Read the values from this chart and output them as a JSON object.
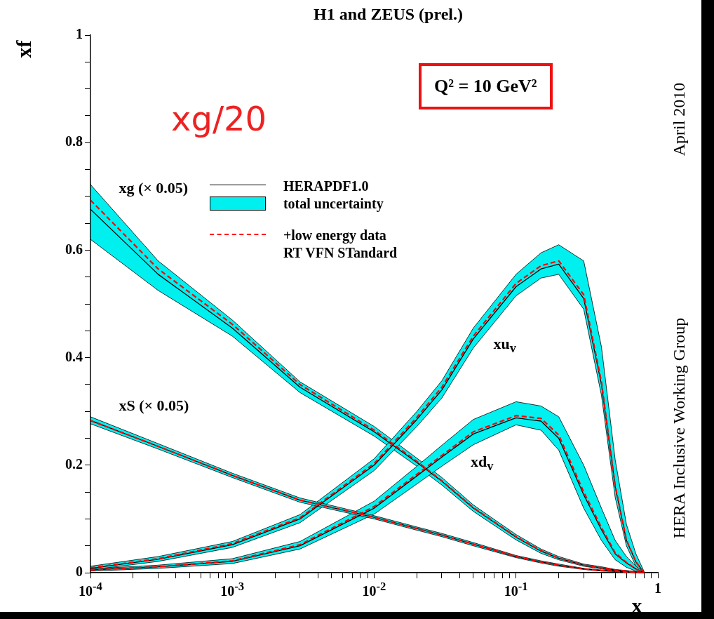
{
  "chart_data": {
    "type": "line",
    "title": "H1 and ZEUS (prel.)",
    "xlabel": "x",
    "ylabel": "xf",
    "log": "x",
    "grid": false,
    "legend": "top",
    "line_style": "solid",
    "marker": "none",
    "xlim": [
      0.0001,
      1
    ],
    "ylim": [
      0,
      1
    ],
    "xticks": [
      {
        "value": 0.0001,
        "label": "10$^{-4}$"
      },
      {
        "value": 0.0002,
        "label": null
      },
      {
        "value": 0.0003,
        "label": null
      },
      {
        "value": 0.0004,
        "label": null
      },
      {
        "value": 0.0005,
        "label": null
      },
      {
        "value": 0.0006,
        "label": null
      },
      {
        "value": 0.0007,
        "label": null
      },
      {
        "value": 0.0008,
        "label": null
      },
      {
        "value": 0.0009,
        "label": null
      },
      {
        "value": 0.001,
        "label": "10$^{-3}$"
      },
      {
        "value": 0.002,
        "label": null
      },
      {
        "value": 0.003,
        "label": null
      },
      {
        "value": 0.004,
        "label": null
      },
      {
        "value": 0.005,
        "label": null
      },
      {
        "value": 0.006,
        "label": null
      },
      {
        "value": 0.007,
        "label": null
      },
      {
        "value": 0.008,
        "label": null
      },
      {
        "value": 0.009,
        "label": null
      },
      {
        "value": 0.01,
        "label": "10$^{-2}$"
      },
      {
        "value": 0.02,
        "label": null
      },
      {
        "value": 0.03,
        "label": null
      },
      {
        "value": 0.04,
        "label": null
      },
      {
        "value": 0.05,
        "label": null
      },
      {
        "value": 0.06,
        "label": null
      },
      {
        "value": 0.07,
        "label": null
      },
      {
        "value": 0.08,
        "label": null
      },
      {
        "value": 0.09,
        "label": null
      },
      {
        "value": 0.1,
        "label": "10$^{-1}$"
      },
      {
        "value": 0.2,
        "label": null
      },
      {
        "value": 0.3,
        "label": null
      },
      {
        "value": 0.4,
        "label": null
      },
      {
        "value": 0.5,
        "label": null
      },
      {
        "value": 0.6,
        "label": null
      },
      {
        "value": 0.7,
        "label": null
      },
      {
        "value": 0.8,
        "label": null
      },
      {
        "value": 0.9,
        "label": null
      },
      1
    ],
    "yticks": [
      0,
      {
        "value": 0.05,
        "label": null
      },
      {
        "value": 0.1,
        "label": null
      },
      {
        "value": 0.15,
        "label": null
      },
      0.2,
      {
        "value": 0.25,
        "label": null
      },
      {
        "value": 0.3,
        "label": null
      },
      {
        "value": 0.35,
        "label": null
      },
      0.4,
      {
        "value": 0.45,
        "label": null
      },
      {
        "value": 0.5,
        "label": null
      },
      {
        "value": 0.55,
        "label": null
      },
      0.6,
      {
        "value": 0.65,
        "label": null
      },
      {
        "value": 0.7,
        "label": null
      },
      {
        "value": 0.75,
        "label": null
      },
      0.8,
      {
        "value": 0.85,
        "label": null
      },
      {
        "value": 0.9,
        "label": null
      },
      {
        "value": 0.95,
        "label": null
      },
      1
    ],
    "x": [
      0.0001,
      0.0003,
      0.001,
      0.003,
      0.01,
      0.02,
      0.03,
      0.05,
      0.1,
      0.15,
      0.2,
      0.3,
      0.4,
      0.5,
      0.6,
      0.7,
      0.8
    ],
    "series": [
      {
        "name": "HERAPDF1.0",
        "color": "#000000",
        "values": [
          0.676,
          0.555,
          0.455,
          0.345,
          0.262,
          0.205,
          0.17,
          0.12,
          0.066,
          0.04,
          0.027,
          0.014,
          0.009,
          0.005,
          0.003,
          0.001,
          0
        ],
        "lower": [
          0.62,
          0.525,
          0.44,
          0.335,
          0.254,
          0.198,
          0.163,
          0.114,
          0.061,
          0.036,
          0.024,
          0.012,
          0.007,
          0.004,
          0.002,
          0,
          0
        ],
        "upper": [
          0.722,
          0.58,
          0.47,
          0.355,
          0.272,
          0.213,
          0.177,
          0.126,
          0.071,
          0.044,
          0.03,
          0.016,
          0.011,
          0.006,
          0.004,
          0.002,
          0
        ]
      },
      {
        "color": "#000000",
        "values": [
          0.283,
          0.235,
          0.181,
          0.135,
          0.103,
          0.082,
          0.07,
          0.053,
          0.03,
          0.02,
          0.014,
          0.007,
          0.004,
          0.003,
          0.001,
          0,
          0
        ],
        "lower": [
          0.277,
          0.23,
          0.177,
          0.131,
          0.1,
          0.079,
          0.067,
          0.05,
          0.028,
          0.018,
          0.012,
          0.006,
          0.003,
          0.002,
          0.001,
          0,
          0
        ],
        "upper": [
          0.29,
          0.24,
          0.185,
          0.139,
          0.106,
          0.085,
          0.073,
          0.056,
          0.032,
          0.022,
          0.016,
          0.008,
          0.005,
          0.004,
          0.002,
          0.001,
          0
        ]
      },
      {
        "color": "#000000",
        "values": [
          0.008,
          0.025,
          0.052,
          0.1,
          0.2,
          0.285,
          0.34,
          0.435,
          0.532,
          0.565,
          0.574,
          0.51,
          0.35,
          0.16,
          0.06,
          0.02,
          0
        ],
        "lower": [
          0.005,
          0.021,
          0.047,
          0.093,
          0.19,
          0.272,
          0.325,
          0.418,
          0.515,
          0.548,
          0.555,
          0.49,
          0.33,
          0.14,
          0.05,
          0.012,
          0
        ],
        "upper": [
          0.012,
          0.03,
          0.058,
          0.108,
          0.212,
          0.3,
          0.357,
          0.455,
          0.555,
          0.595,
          0.61,
          0.58,
          0.42,
          0.21,
          0.09,
          0.035,
          0.002
        ]
      },
      {
        "color": "#000000",
        "values": [
          0.005,
          0.011,
          0.021,
          0.05,
          0.12,
          0.18,
          0.215,
          0.258,
          0.288,
          0.282,
          0.25,
          0.145,
          0.08,
          0.035,
          0.018,
          0.007,
          0
        ],
        "lower": [
          0.003,
          0.008,
          0.017,
          0.044,
          0.109,
          0.165,
          0.198,
          0.238,
          0.275,
          0.265,
          0.228,
          0.12,
          0.06,
          0.024,
          0.01,
          0.003,
          0
        ],
        "upper": [
          0.007,
          0.014,
          0.026,
          0.058,
          0.133,
          0.198,
          0.237,
          0.285,
          0.318,
          0.31,
          0.29,
          0.2,
          0.12,
          0.06,
          0.03,
          0.012,
          0.001
        ]
      },
      {
        "name": "+low energy data\nRT VFN STandard",
        "color": "#ff0000",
        "line_style": "dashed",
        "values": [
          0.693,
          0.565,
          0.462,
          0.35,
          0.265,
          0.207,
          0.171,
          0.121,
          0.067,
          0.041,
          0.027,
          0.014,
          0.009,
          0.005,
          0.003,
          0.001,
          0
        ]
      },
      {
        "color": "#ff0000",
        "line_style": "dashed",
        "values": [
          0.283,
          0.235,
          0.181,
          0.135,
          0.103,
          0.082,
          0.07,
          0.053,
          0.03,
          0.02,
          0.014,
          0.007,
          0.004,
          0.003,
          0.001,
          0,
          0
        ]
      },
      {
        "color": "#ff0000",
        "line_style": "dashed",
        "values": [
          0.009,
          0.026,
          0.054,
          0.102,
          0.203,
          0.289,
          0.345,
          0.44,
          0.538,
          0.571,
          0.58,
          0.517,
          0.355,
          0.162,
          0.061,
          0.02,
          0
        ]
      },
      {
        "color": "#ff0000",
        "line_style": "dashed",
        "values": [
          0.005,
          0.011,
          0.022,
          0.052,
          0.123,
          0.183,
          0.218,
          0.262,
          0.292,
          0.287,
          0.256,
          0.15,
          0.084,
          0.037,
          0.019,
          0.007,
          0
        ]
      }
    ],
    "annotations": [
      "xg/20",
      "Q² = 10 GeV²",
      "April 2010",
      "HERA Inclusive Working Group",
      "total uncertainty",
      "xg (× 0.05)",
      "xS (× 0.05)",
      "xu$_{v}$",
      "xd$_{v}$"
    ]
  }
}
